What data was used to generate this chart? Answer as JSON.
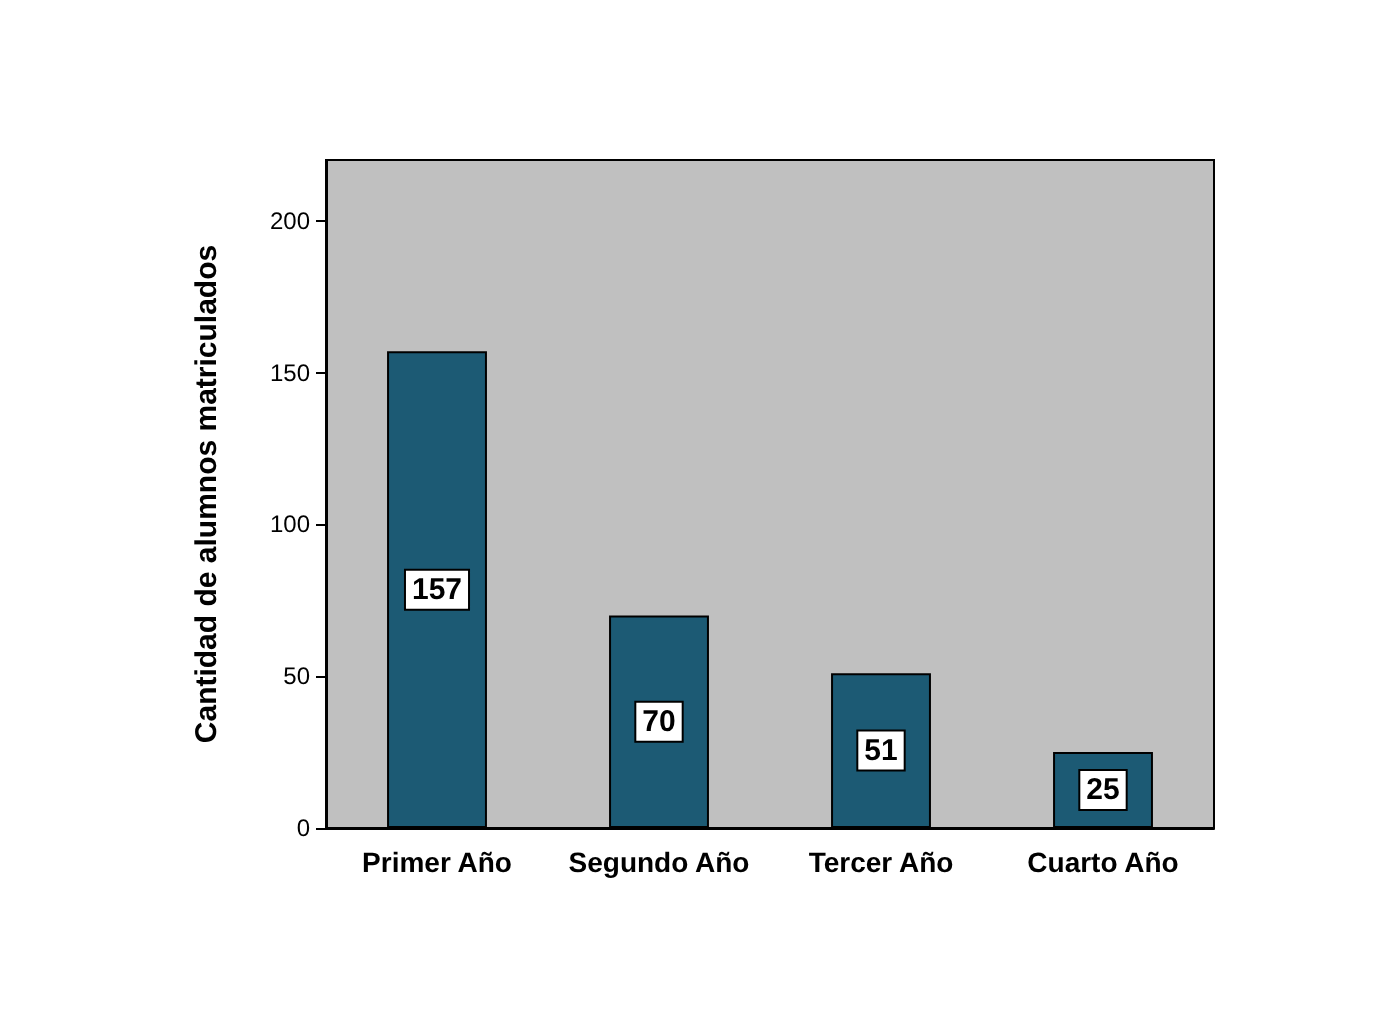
{
  "chart_data": {
    "type": "bar",
    "ylabel": "Cantidad de alumnos matriculados",
    "categories": [
      "Primer Año",
      "Segundo Año",
      "Tercer Año",
      "Cuarto Año"
    ],
    "values": [
      157,
      70,
      51,
      25
    ],
    "color": "#1c5a74",
    "ylim": [
      0,
      220
    ],
    "yticks": [
      0,
      50,
      100,
      150,
      200
    ],
    "data_labels": true,
    "grid": false
  }
}
